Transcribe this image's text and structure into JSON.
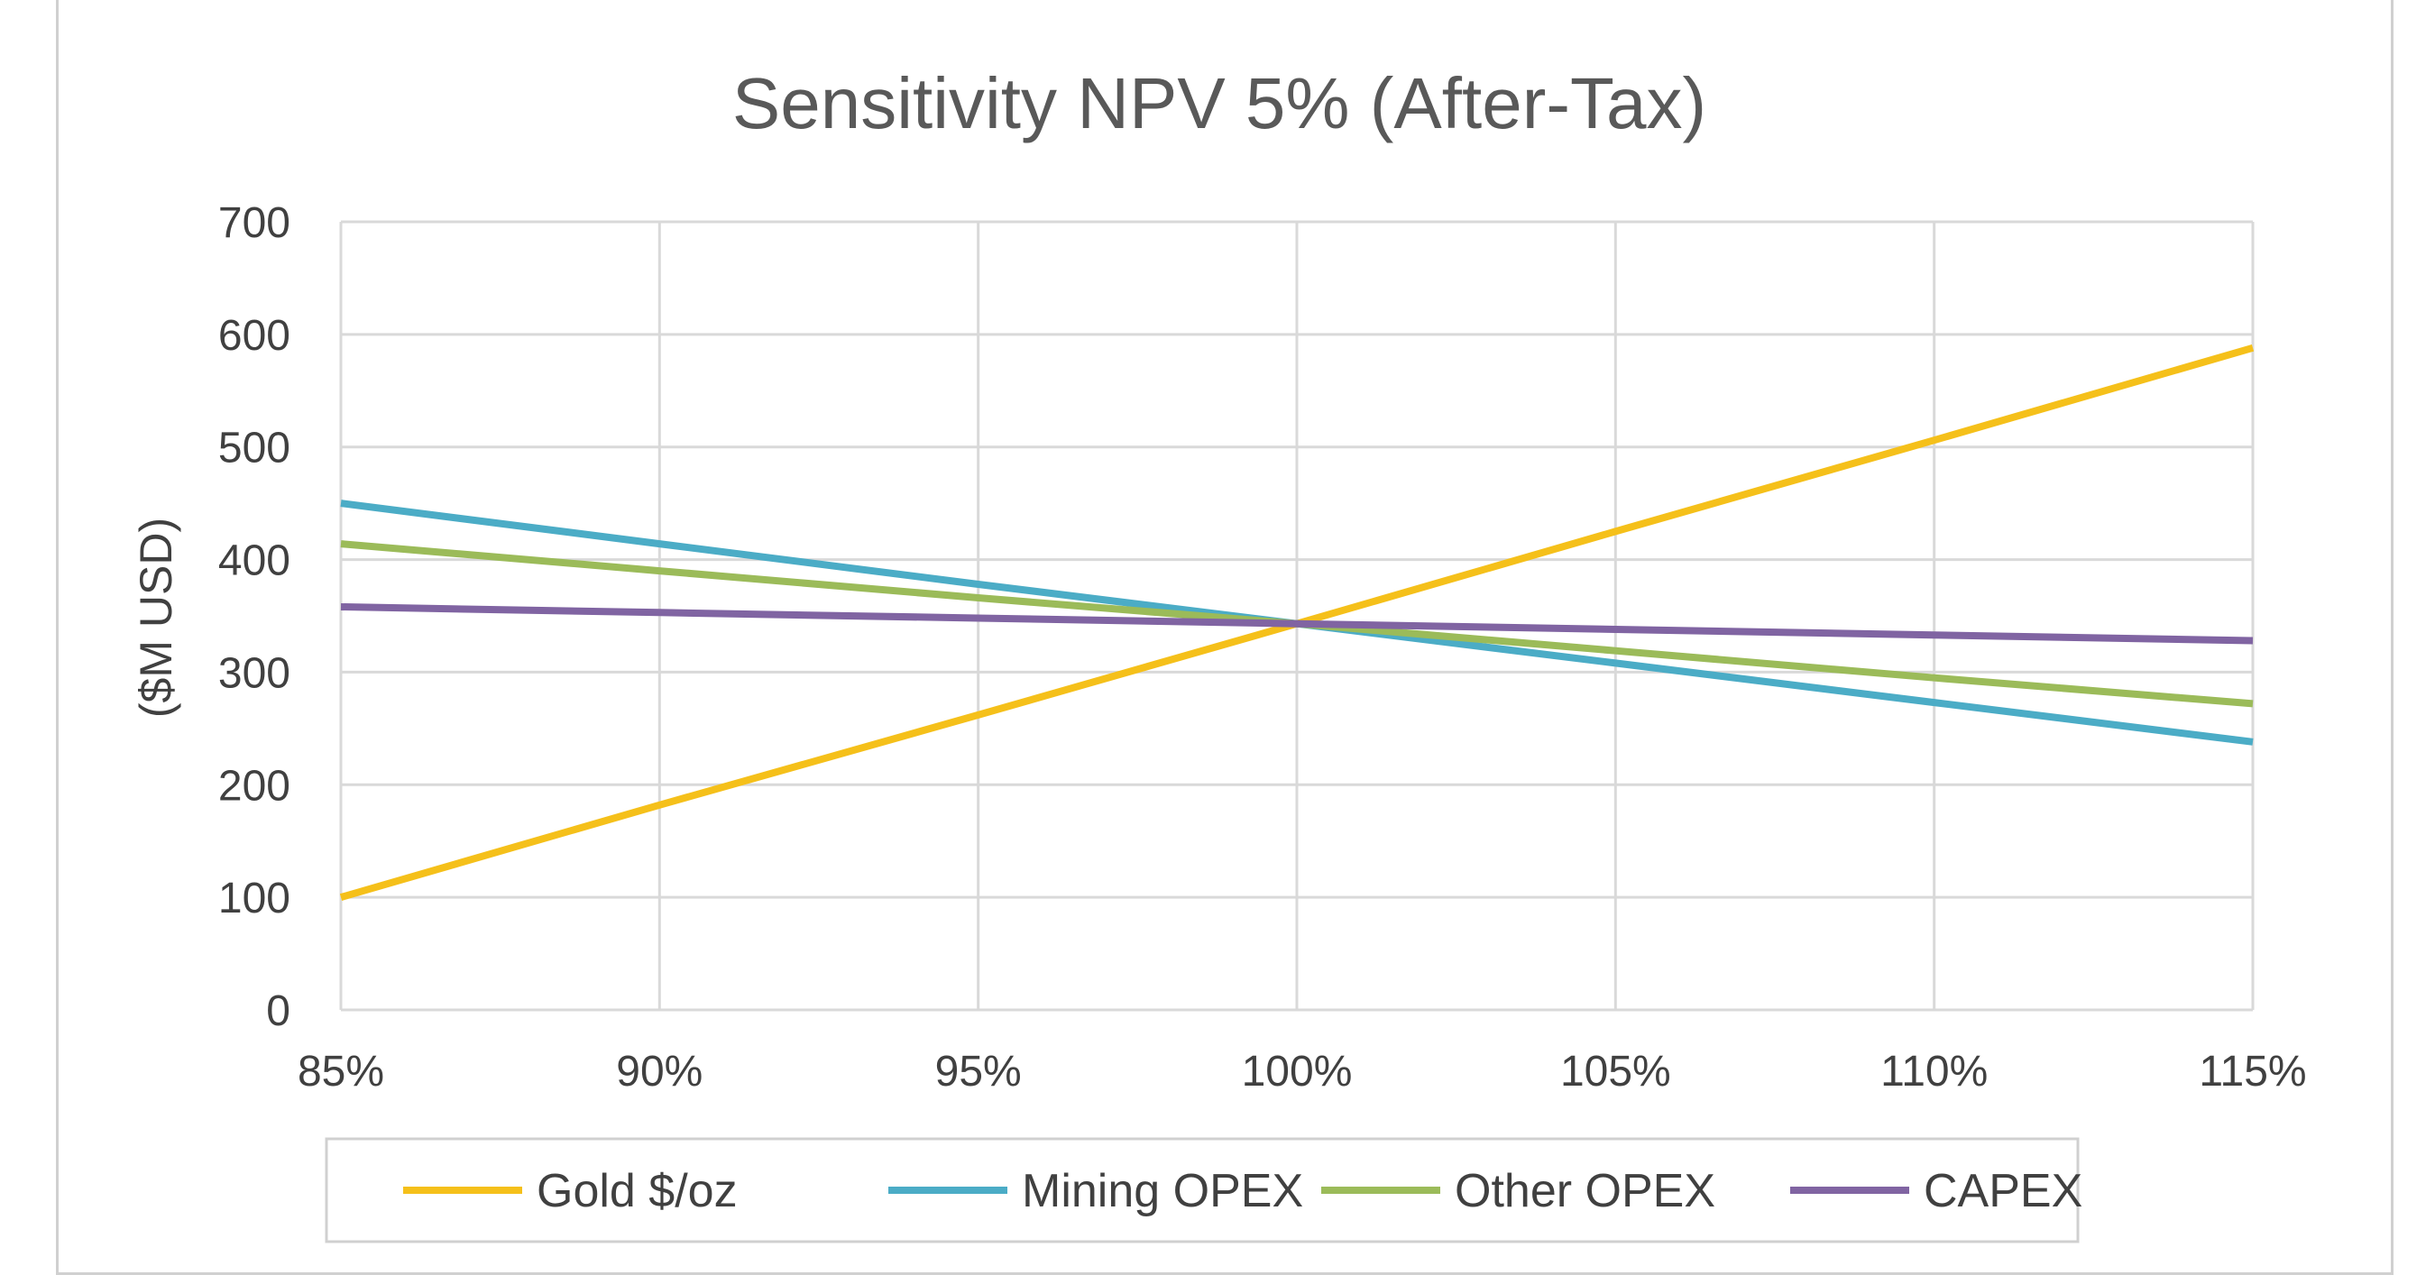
{
  "chart_data": {
    "type": "line",
    "title": "Sensitivity NPV 5% (After-Tax)",
    "xlabel": "",
    "ylabel": "($M USD)",
    "x": [
      "85%",
      "90%",
      "95%",
      "100%",
      "105%",
      "110%",
      "115%"
    ],
    "ylim": [
      0,
      700
    ],
    "yticks": [
      "0",
      "100",
      "200",
      "300",
      "400",
      "500",
      "600",
      "700"
    ],
    "grid": true,
    "legend": "bottom",
    "series": [
      {
        "name": "Gold $/oz",
        "color": "#F5C01A",
        "values": [
          100,
          182,
          262,
          343,
          425,
          506,
          588
        ]
      },
      {
        "name": "Mining OPEX",
        "color": "#4BACC6",
        "values": [
          450,
          414,
          378,
          343,
          308,
          273,
          238
        ]
      },
      {
        "name": "Other OPEX",
        "color": "#9BBB59",
        "values": [
          414,
          390,
          366,
          343,
          319,
          295,
          272
        ]
      },
      {
        "name": "CAPEX",
        "color": "#8064A2",
        "values": [
          358,
          353,
          348,
          343,
          338,
          333,
          328
        ]
      }
    ]
  }
}
